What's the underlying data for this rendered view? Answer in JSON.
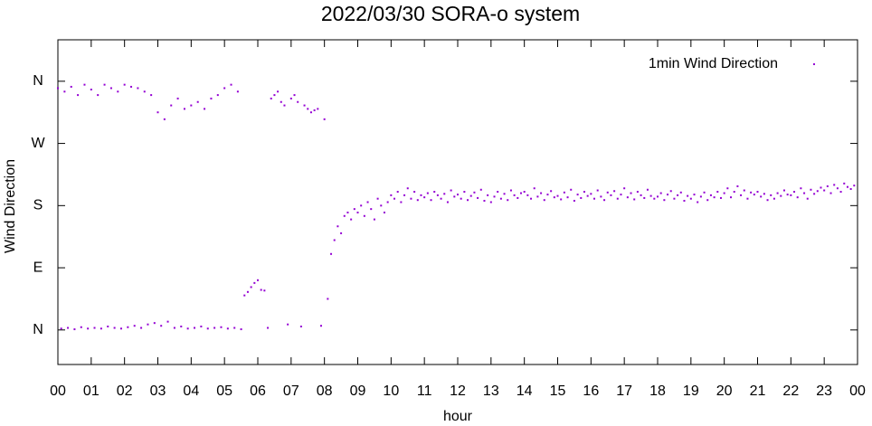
{
  "chart_data": {
    "type": "scatter",
    "title": "2022/03/30 SORA-o system",
    "x_label": "hour",
    "y_label": "Wind Direction",
    "xlim": [
      0,
      24
    ],
    "ylim": [
      -50,
      420
    ],
    "xticks": [
      {
        "value": 0,
        "label": "00"
      },
      {
        "value": 1,
        "label": "01"
      },
      {
        "value": 2,
        "label": "02"
      },
      {
        "value": 3,
        "label": "03"
      },
      {
        "value": 4,
        "label": "04"
      },
      {
        "value": 5,
        "label": "05"
      },
      {
        "value": 6,
        "label": "06"
      },
      {
        "value": 7,
        "label": "07"
      },
      {
        "value": 8,
        "label": "08"
      },
      {
        "value": 9,
        "label": "09"
      },
      {
        "value": 10,
        "label": "10"
      },
      {
        "value": 11,
        "label": "11"
      },
      {
        "value": 12,
        "label": "12"
      },
      {
        "value": 13,
        "label": "13"
      },
      {
        "value": 14,
        "label": "14"
      },
      {
        "value": 15,
        "label": "15"
      },
      {
        "value": 16,
        "label": "16"
      },
      {
        "value": 17,
        "label": "17"
      },
      {
        "value": 18,
        "label": "18"
      },
      {
        "value": 19,
        "label": "19"
      },
      {
        "value": 20,
        "label": "20"
      },
      {
        "value": 21,
        "label": "21"
      },
      {
        "value": 22,
        "label": "22"
      },
      {
        "value": 23,
        "label": "23"
      },
      {
        "value": 24,
        "label": "00"
      }
    ],
    "yticks": [
      {
        "value": 0,
        "label": "N"
      },
      {
        "value": 90,
        "label": "E"
      },
      {
        "value": 180,
        "label": "S"
      },
      {
        "value": 270,
        "label": "W"
      },
      {
        "value": 360,
        "label": "N"
      }
    ],
    "legend_position": "upper right",
    "series": [
      {
        "name": "1min Wind Direction",
        "color": "#9400d3",
        "x": [
          0,
          0.1,
          0.2,
          0.3,
          0.4,
          0.5,
          0.6,
          0.7,
          0.8,
          0.9,
          1,
          1.1,
          1.2,
          1.3,
          1.4,
          1.5,
          1.6,
          1.7,
          1.8,
          1.9,
          2,
          2.1,
          2.2,
          2.3,
          2.4,
          2.5,
          2.6,
          2.7,
          2.8,
          2.9,
          3,
          3.1,
          3.2,
          3.3,
          3.4,
          3.5,
          3.6,
          3.7,
          3.8,
          3.9,
          4,
          4.1,
          4.2,
          4.3,
          4.4,
          4.5,
          4.6,
          4.7,
          4.8,
          4.9,
          5,
          5.1,
          5.2,
          5.3,
          5.4,
          5.5,
          5.6,
          5.7,
          5.8,
          5.9,
          6,
          6.1,
          6.2,
          6.3,
          6.4,
          6.5,
          6.6,
          6.7,
          6.8,
          6.9,
          7,
          7.1,
          7.2,
          7.3,
          7.4,
          7.5,
          7.6,
          7.7,
          7.8,
          7.9,
          8,
          8.1,
          8.2,
          8.3,
          8.4,
          8.5,
          8.6,
          8.7,
          8.8,
          8.9,
          9,
          9.1,
          9.2,
          9.3,
          9.4,
          9.5,
          9.6,
          9.7,
          9.8,
          9.9,
          10,
          10.1,
          10.2,
          10.3,
          10.4,
          10.5,
          10.6,
          10.7,
          10.8,
          10.9,
          11,
          11.1,
          11.2,
          11.3,
          11.4,
          11.5,
          11.6,
          11.7,
          11.8,
          11.9,
          12,
          12.1,
          12.2,
          12.3,
          12.4,
          12.5,
          12.6,
          12.7,
          12.8,
          12.9,
          13,
          13.1,
          13.2,
          13.3,
          13.4,
          13.5,
          13.6,
          13.7,
          13.8,
          13.9,
          14,
          14.1,
          14.2,
          14.3,
          14.4,
          14.5,
          14.6,
          14.7,
          14.8,
          14.9,
          15,
          15.1,
          15.2,
          15.3,
          15.4,
          15.5,
          15.6,
          15.7,
          15.8,
          15.9,
          16,
          16.1,
          16.2,
          16.3,
          16.4,
          16.5,
          16.6,
          16.7,
          16.8,
          16.9,
          17,
          17.1,
          17.2,
          17.3,
          17.4,
          17.5,
          17.6,
          17.7,
          17.8,
          17.9,
          18,
          18.1,
          18.2,
          18.3,
          18.4,
          18.5,
          18.6,
          18.7,
          18.8,
          18.9,
          19,
          19.1,
          19.2,
          19.3,
          19.4,
          19.5,
          19.6,
          19.7,
          19.8,
          19.9,
          20,
          20.1,
          20.2,
          20.3,
          20.4,
          20.5,
          20.6,
          20.7,
          20.8,
          20.9,
          21,
          21.1,
          21.2,
          21.3,
          21.4,
          21.5,
          21.6,
          21.7,
          21.8,
          21.9,
          22,
          22.1,
          22.2,
          22.3,
          22.4,
          22.5,
          22.6,
          22.7,
          22.8,
          22.9,
          23,
          23.1,
          23.2,
          23.3,
          23.4,
          23.5,
          23.6,
          23.7,
          23.8,
          23.9
        ],
        "values": [
          350,
          2,
          345,
          3,
          352,
          1,
          340,
          4,
          355,
          2,
          348,
          3,
          340,
          2,
          355,
          5,
          350,
          3,
          345,
          2,
          355,
          4,
          352,
          6,
          350,
          3,
          345,
          8,
          340,
          10,
          315,
          6,
          305,
          12,
          325,
          3,
          335,
          5,
          320,
          2,
          325,
          3,
          330,
          5,
          320,
          2,
          335,
          3,
          340,
          4,
          350,
          2,
          355,
          3,
          345,
          1,
          50,
          55,
          62,
          68,
          72,
          58,
          57,
          3,
          335,
          340,
          345,
          330,
          325,
          8,
          335,
          340,
          330,
          5,
          325,
          320,
          315,
          318,
          320,
          6,
          305,
          45,
          110,
          130,
          150,
          140,
          165,
          170,
          160,
          175,
          170,
          180,
          165,
          185,
          175,
          160,
          190,
          180,
          170,
          185,
          195,
          190,
          200,
          185,
          195,
          205,
          190,
          200,
          188,
          195,
          192,
          198,
          188,
          200,
          195,
          190,
          197,
          185,
          202,
          193,
          196,
          190,
          200,
          188,
          194,
          199,
          191,
          203,
          187,
          195,
          185,
          193,
          200,
          190,
          197,
          188,
          202,
          195,
          191,
          198,
          200,
          195,
          190,
          205,
          193,
          198,
          188,
          196,
          201,
          192,
          194,
          189,
          199,
          192,
          203,
          187,
          196,
          191,
          200,
          194,
          197,
          190,
          202,
          193,
          188,
          199,
          195,
          201,
          190,
          196,
          205,
          192,
          198,
          189,
          200,
          195,
          191,
          203,
          194,
          190,
          193,
          198,
          188,
          196,
          201,
          190,
          195,
          199,
          187,
          194,
          190,
          196,
          185,
          193,
          199,
          188,
          195,
          192,
          200,
          191,
          198,
          205,
          192,
          200,
          208,
          195,
          202,
          190,
          199,
          196,
          200,
          193,
          197,
          188,
          195,
          190,
          198,
          194,
          202,
          196,
          195,
          200,
          192,
          205,
          198,
          190,
          203,
          197,
          201,
          206,
          202,
          208,
          198,
          210,
          205,
          200,
          212,
          207,
          204,
          209
        ]
      }
    ]
  }
}
